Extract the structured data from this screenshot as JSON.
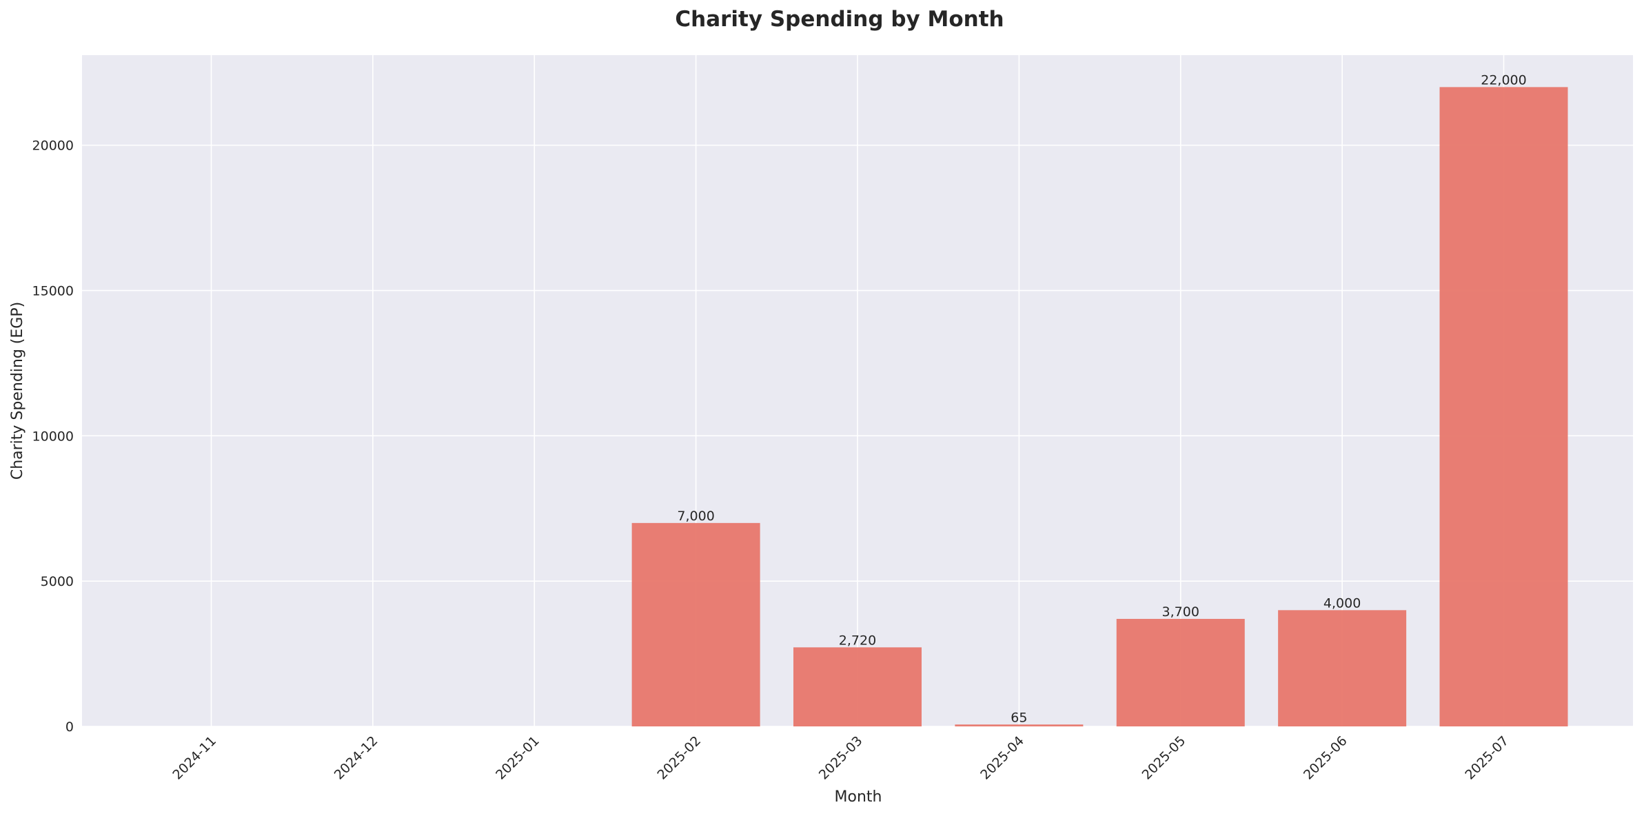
{
  "chart_data": {
    "type": "bar",
    "title": "Charity Spending by Month",
    "xlabel": "Month",
    "ylabel": "Charity Spending (EGP)",
    "categories": [
      "2024-11",
      "2024-12",
      "2025-01",
      "2025-02",
      "2025-03",
      "2025-04",
      "2025-05",
      "2025-06",
      "2025-07"
    ],
    "values": [
      0,
      0,
      0,
      7000,
      2720,
      65,
      3700,
      4000,
      22000
    ],
    "bar_labels": [
      "",
      "",
      "",
      "7,000",
      "2,720",
      "65",
      "3,700",
      "4,000",
      "22,000"
    ],
    "ylim": [
      0,
      23100
    ],
    "yticks": [
      0,
      5000,
      10000,
      15000,
      20000
    ],
    "ytick_labels": [
      "0",
      "5000",
      "10000",
      "15000",
      "20000"
    ],
    "grid": true,
    "colors": {
      "bar": "#e8776c",
      "plot_background": "#eaeaf2",
      "grid": "#ffffff",
      "text": "#262626"
    }
  }
}
